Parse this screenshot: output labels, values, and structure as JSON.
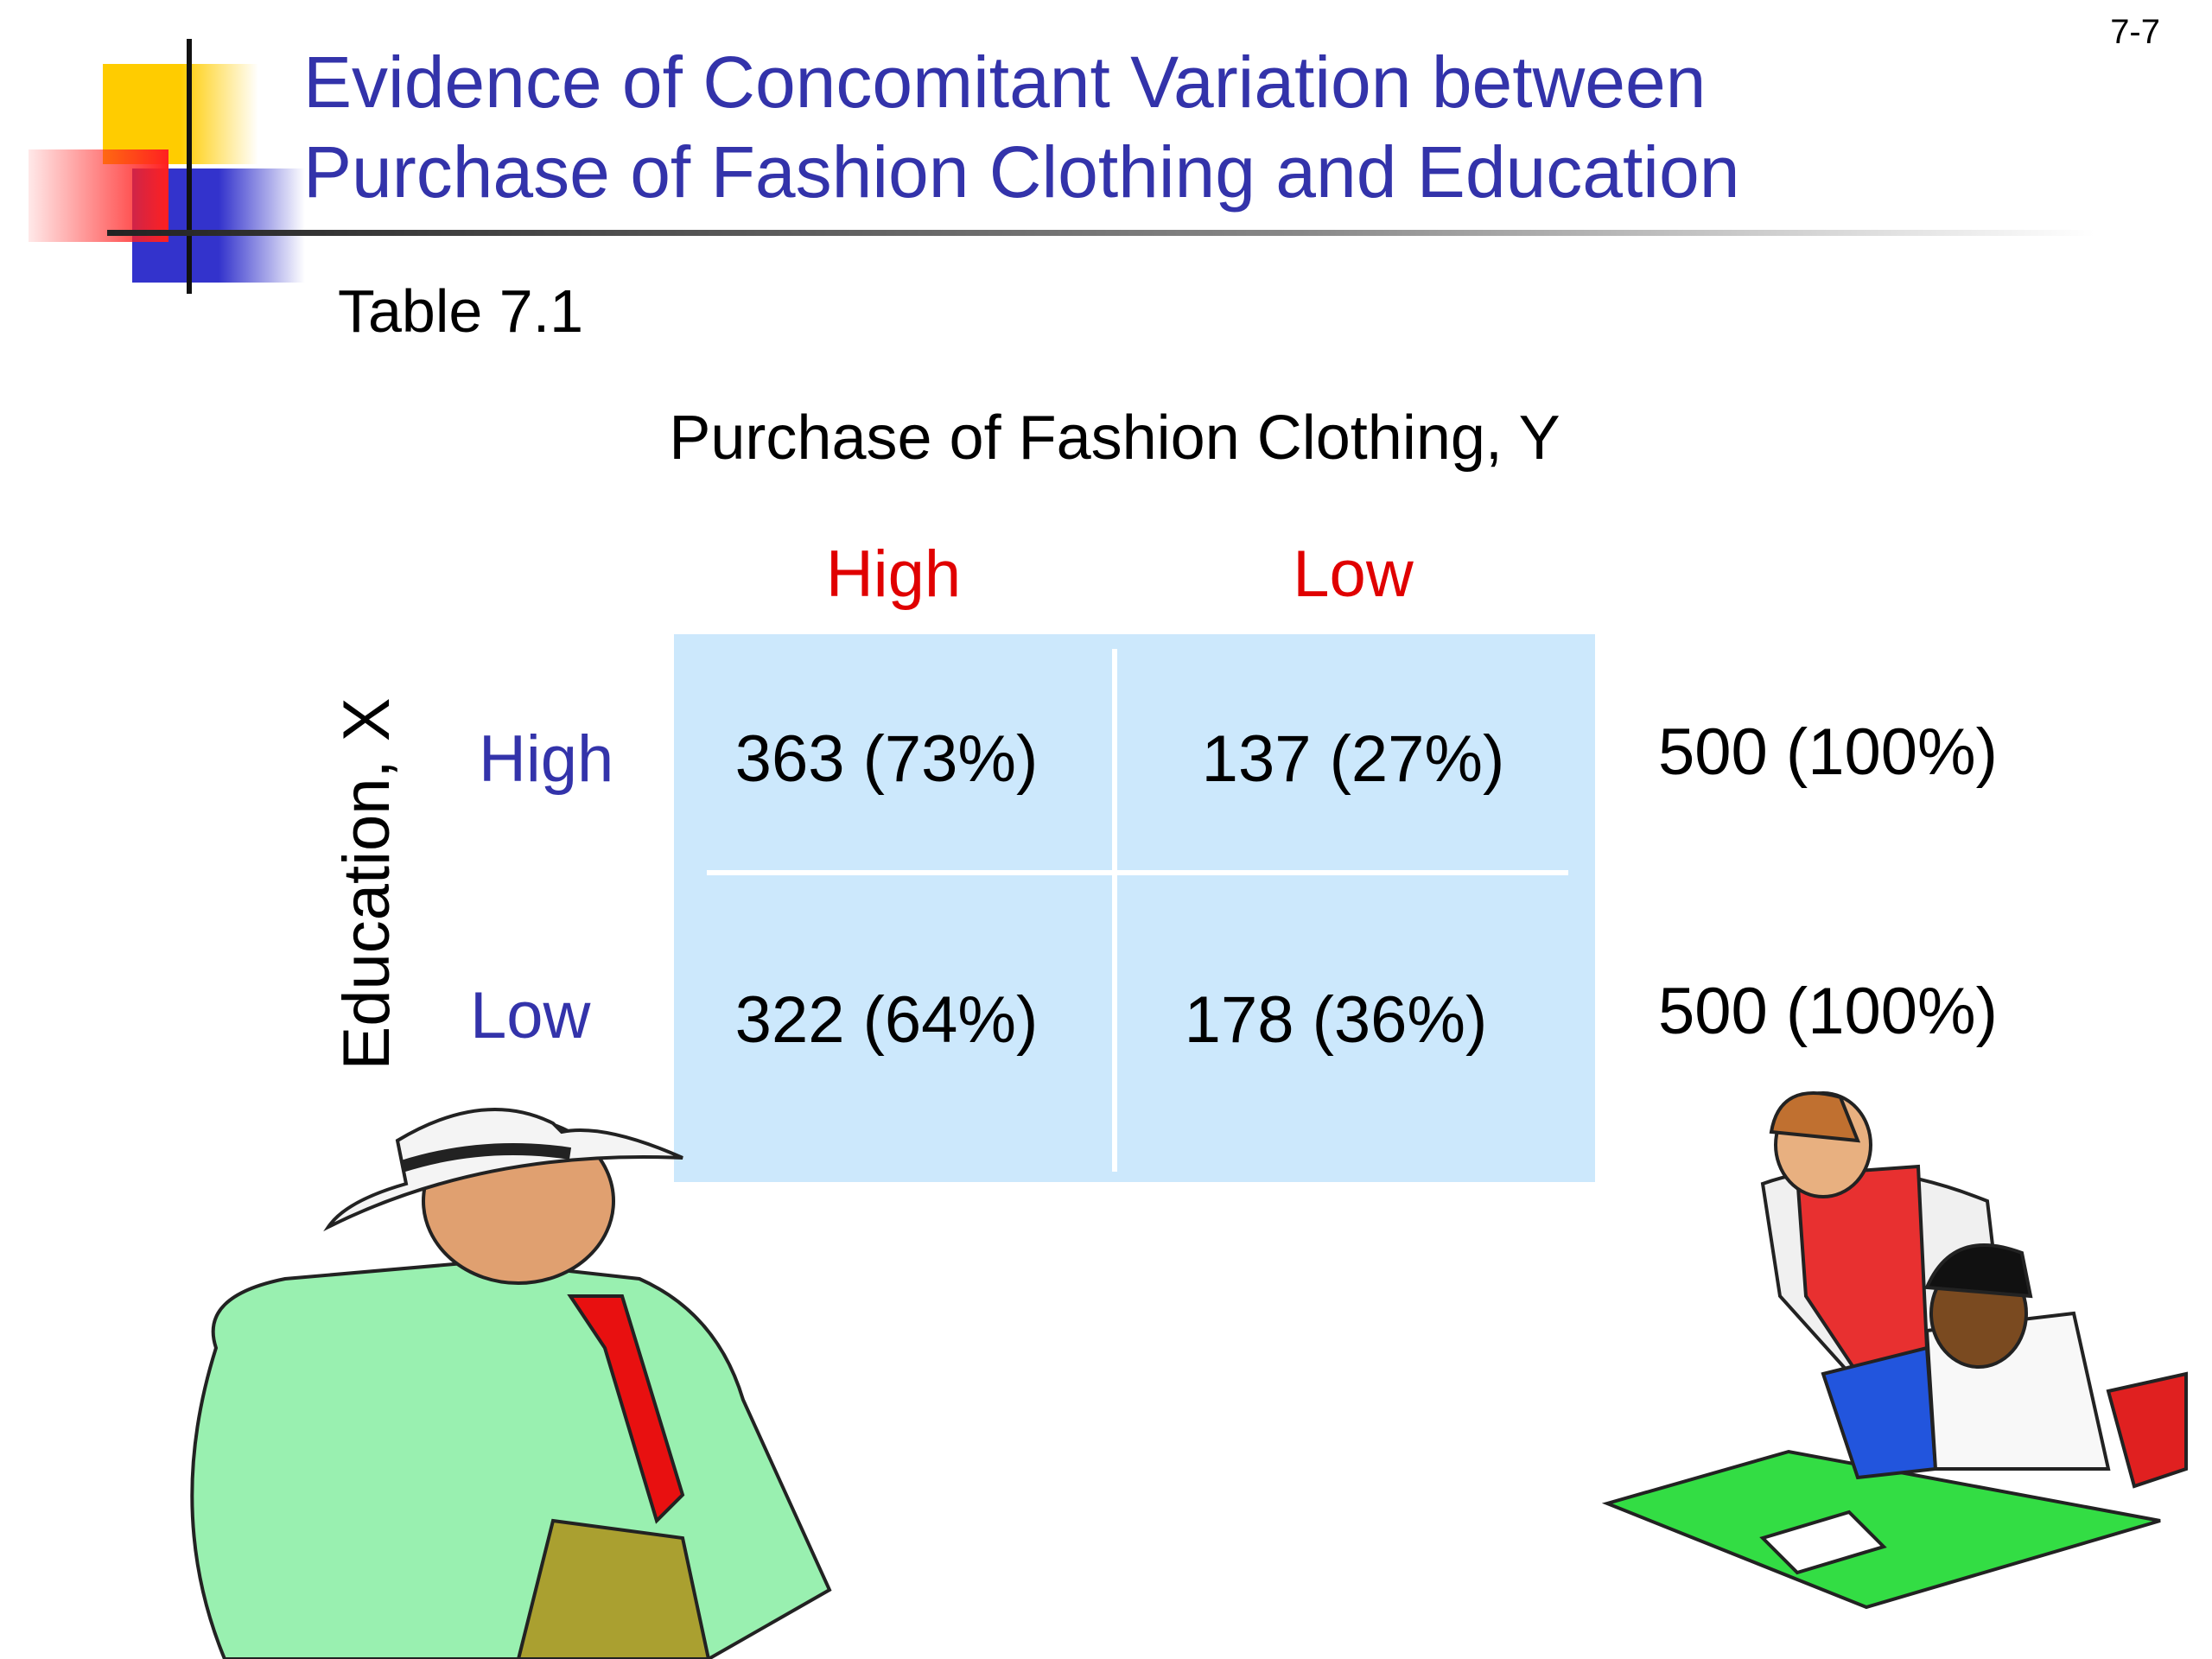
{
  "slide_number": "7-7",
  "header": {
    "title_lines": [
      "Evidence of Concomitant Variation between",
      "Purchase of Fashion Clothing and Education"
    ]
  },
  "table": {
    "caption": "Table 7.1",
    "column_header": "Purchase of Fashion Clothing, Y",
    "columns": [
      "High",
      "Low"
    ],
    "row_header": "Education, X",
    "rows": [
      {
        "label": "High",
        "cells": [
          "363 (73%)",
          "137 (27%)"
        ],
        "total": "500 (100%)"
      },
      {
        "label": "Low",
        "cells": [
          "322 (64%)",
          "178 (36%)"
        ],
        "total": "500 (100%)"
      }
    ]
  }
}
